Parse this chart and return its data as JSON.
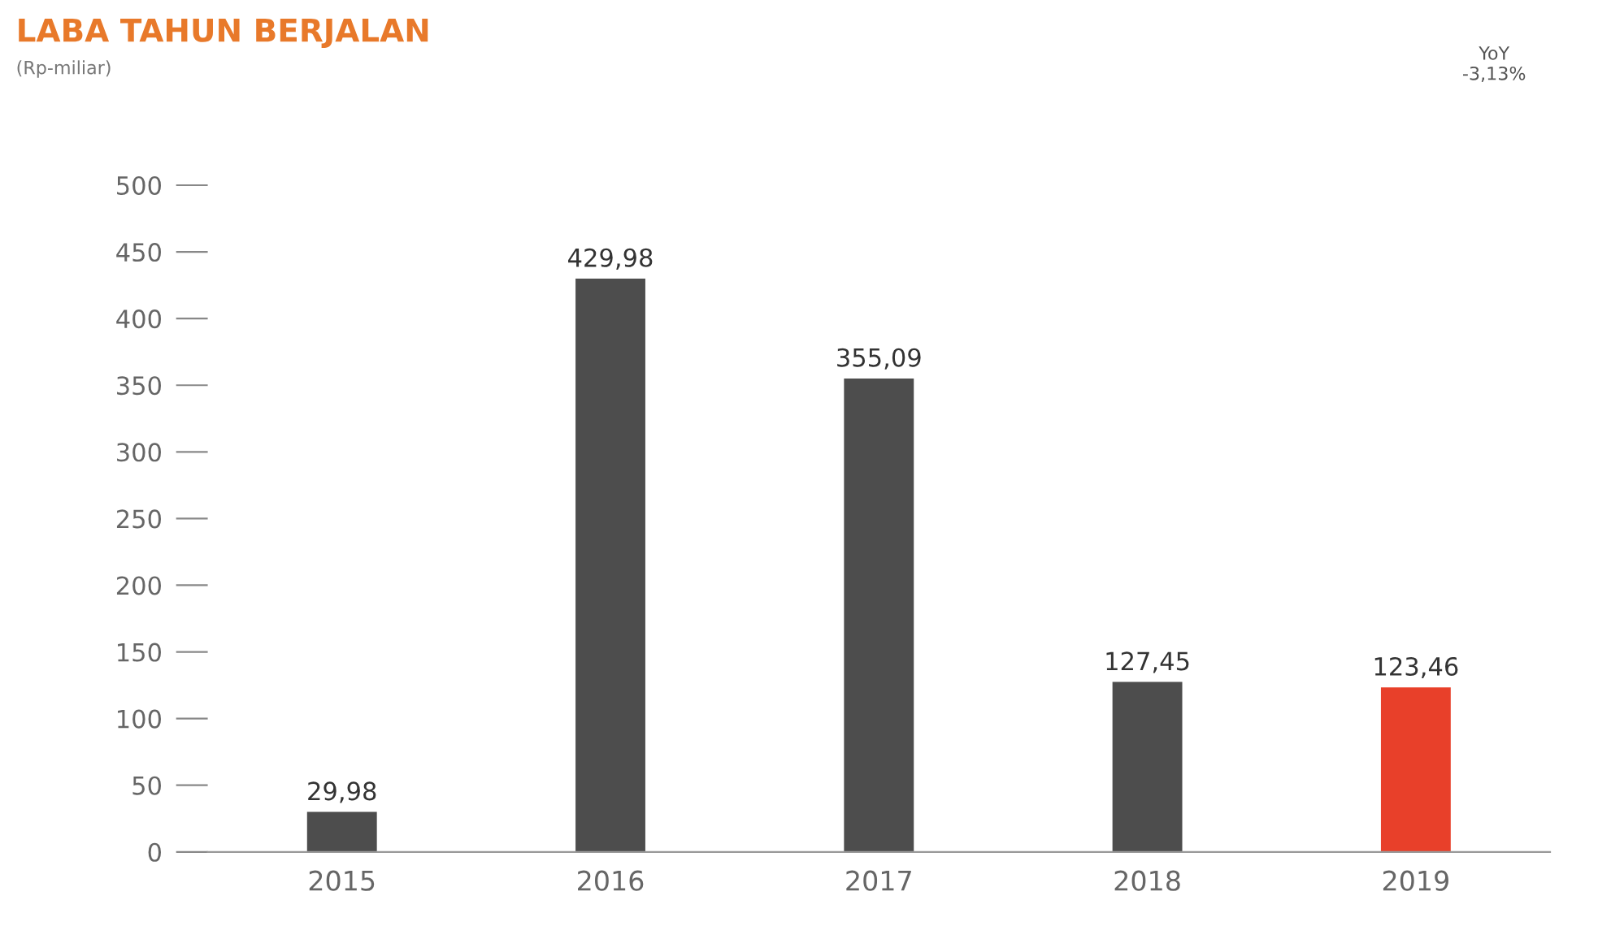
{
  "chart_data": {
    "type": "bar",
    "title": "LABA TAHUN BERJALAN",
    "subtitle": "(Rp-miliar)",
    "categories": [
      "2015",
      "2016",
      "2017",
      "2018",
      "2019"
    ],
    "values": [
      29.98,
      429.98,
      355.09,
      127.45,
      123.46
    ],
    "colors": [
      "#4d4d4d",
      "#4d4d4d",
      "#4d4d4d",
      "#4d4d4d",
      "#e8402a"
    ],
    "value_labels": [
      "29,98",
      "429,98",
      "355,09",
      "127,45",
      "123,46"
    ],
    "ylim": [
      0,
      500
    ],
    "yticks": [
      0,
      50,
      100,
      150,
      200,
      250,
      300,
      350,
      400,
      450,
      500
    ],
    "grid": false,
    "annotations": [
      "YoY\n-3,13%"
    ]
  }
}
